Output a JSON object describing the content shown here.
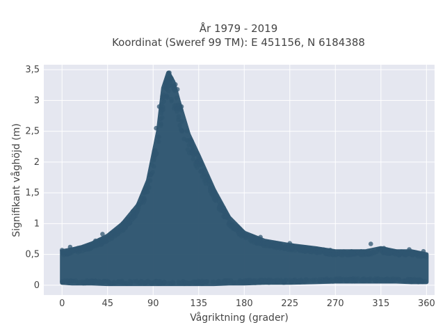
{
  "chart_data": {
    "type": "scatter",
    "title_lines": [
      "År 1979 - 2019",
      "Koordinat (Sweref 99 TM): E 451156, N 6184388"
    ],
    "xlabel": "Vågriktning (grader)",
    "ylabel": "Signifikant våghöjd (m)",
    "xlim": [
      -18,
      368
    ],
    "ylim": [
      -0.16,
      3.58
    ],
    "x_ticks": [
      0,
      45,
      90,
      135,
      180,
      225,
      270,
      315,
      360
    ],
    "x_tick_labels": [
      "0",
      "45",
      "90",
      "135",
      "180",
      "225",
      "270",
      "315",
      "360"
    ],
    "y_ticks": [
      0,
      0.5,
      1,
      1.5,
      2,
      2.5,
      3,
      3.5
    ],
    "y_tick_labels": [
      "0",
      "0,5",
      "1",
      "1,5",
      "2",
      "2,5",
      "3",
      "3,5"
    ],
    "grid": true,
    "legend": "none",
    "marker_color": "#2f5670",
    "plot_background": "#e5e7f0",
    "envelope": {
      "description_of_points": "dense cloud of individual observations; upper envelope below",
      "x": [
        0,
        10,
        20,
        30,
        45,
        60,
        75,
        85,
        95,
        100,
        105,
        110,
        115,
        125,
        135,
        150,
        165,
        180,
        200,
        225,
        250,
        270,
        300,
        315,
        330,
        345,
        360
      ],
      "y_max": [
        0.55,
        0.58,
        0.62,
        0.68,
        0.8,
        1.0,
        1.3,
        1.7,
        2.5,
        3.2,
        3.45,
        3.3,
        3.0,
        2.45,
        2.1,
        1.55,
        1.1,
        0.85,
        0.72,
        0.65,
        0.6,
        0.55,
        0.55,
        0.6,
        0.55,
        0.55,
        0.5
      ],
      "y_min": [
        0.04,
        0.03,
        0.03,
        0.03,
        0.02,
        0.02,
        0.02,
        0.02,
        0.02,
        0.02,
        0.02,
        0.02,
        0.02,
        0.02,
        0.02,
        0.02,
        0.03,
        0.03,
        0.04,
        0.04,
        0.05,
        0.06,
        0.06,
        0.06,
        0.06,
        0.05,
        0.05
      ]
    },
    "sample_points": [
      {
        "x": 106,
        "y": 3.45
      },
      {
        "x": 108,
        "y": 3.36
      },
      {
        "x": 103,
        "y": 3.3
      },
      {
        "x": 112,
        "y": 3.26
      },
      {
        "x": 104,
        "y": 3.05
      },
      {
        "x": 114,
        "y": 3.18
      },
      {
        "x": 118,
        "y": 2.9
      },
      {
        "x": 96,
        "y": 2.9
      },
      {
        "x": 93,
        "y": 2.55
      },
      {
        "x": 125,
        "y": 2.35
      },
      {
        "x": 128,
        "y": 2.28
      },
      {
        "x": 132,
        "y": 2.15
      },
      {
        "x": 138,
        "y": 1.95
      },
      {
        "x": 145,
        "y": 1.7
      },
      {
        "x": 150,
        "y": 1.5
      },
      {
        "x": 82,
        "y": 1.5
      },
      {
        "x": 76,
        "y": 1.3
      },
      {
        "x": 70,
        "y": 1.2
      },
      {
        "x": 60,
        "y": 1.0
      },
      {
        "x": 160,
        "y": 1.2
      },
      {
        "x": 170,
        "y": 0.95
      },
      {
        "x": 178,
        "y": 0.82
      },
      {
        "x": 52,
        "y": 0.85
      },
      {
        "x": 40,
        "y": 0.83
      },
      {
        "x": 33,
        "y": 0.72
      },
      {
        "x": 0,
        "y": 0.57
      },
      {
        "x": 8,
        "y": 0.62
      },
      {
        "x": 20,
        "y": 0.6
      },
      {
        "x": 196,
        "y": 0.78
      },
      {
        "x": 225,
        "y": 0.68
      },
      {
        "x": 245,
        "y": 0.6
      },
      {
        "x": 265,
        "y": 0.57
      },
      {
        "x": 305,
        "y": 0.67
      },
      {
        "x": 318,
        "y": 0.6
      },
      {
        "x": 343,
        "y": 0.58
      },
      {
        "x": 357,
        "y": 0.55
      }
    ]
  }
}
